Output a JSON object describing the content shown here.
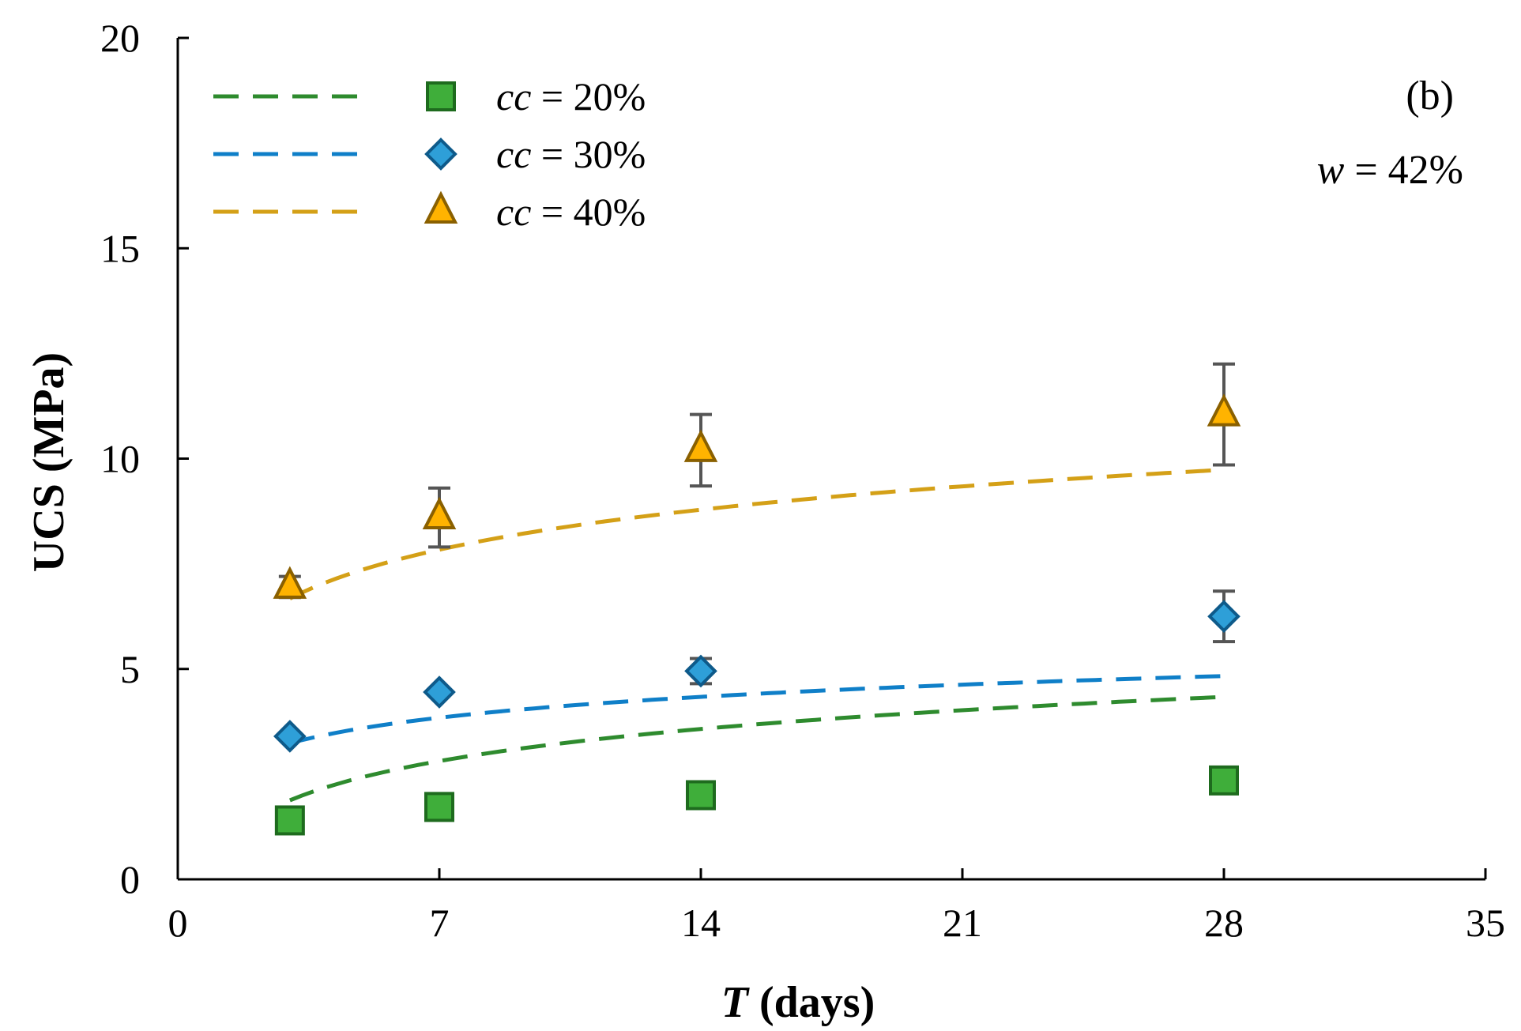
{
  "chart_data": {
    "type": "scatter",
    "panel_label": "(b)",
    "annotation": {
      "variable": "w",
      "rest": " = 42%"
    },
    "xlabel": {
      "variable": "T",
      "rest": " (days)"
    },
    "ylabel": "UCS (MPa)",
    "xlim": [
      0,
      35
    ],
    "ylim": [
      0,
      20
    ],
    "xticks": [
      0,
      7,
      14,
      21,
      28,
      35
    ],
    "yticks": [
      0,
      5,
      10,
      15,
      20
    ],
    "legend_position": "top-left",
    "series": [
      {
        "name": "cc = 20%",
        "label_variable": "cc",
        "label_rest": " = 20%",
        "marker": "square",
        "fill": "#3fae3a",
        "stroke": "#1e6b1e",
        "line_color": "#2e8b2e",
        "x": [
          3,
          7,
          14,
          28
        ],
        "y": [
          1.4,
          1.72,
          2.0,
          2.35
        ],
        "err": [
          0,
          0,
          0,
          0
        ],
        "fit": {
          "a": 0.67,
          "b": 1.1
        }
      },
      {
        "name": "cc = 30%",
        "label_variable": "cc",
        "label_rest": " = 30%",
        "marker": "diamond",
        "fill": "#2e9fd8",
        "stroke": "#0e5a8a",
        "line_color": "#0f7fc8",
        "x": [
          3,
          7,
          14,
          28
        ],
        "y": [
          3.4,
          4.45,
          4.95,
          6.25
        ],
        "err": [
          0,
          0,
          0.3,
          0.6
        ],
        "fit": {
          "a": 2.45,
          "b": 0.715
        }
      },
      {
        "name": "cc = 40%",
        "label_variable": "cc",
        "label_rest": " = 40%",
        "marker": "triangle",
        "fill": "#ffb300",
        "stroke": "#8a6000",
        "line_color": "#d4a017",
        "x": [
          3,
          7,
          14,
          28
        ],
        "y": [
          6.95,
          8.6,
          10.2,
          11.05
        ],
        "err": [
          0.25,
          0.7,
          0.85,
          1.2
        ],
        "fit": {
          "a": 5.17,
          "b": 1.37
        }
      }
    ]
  }
}
